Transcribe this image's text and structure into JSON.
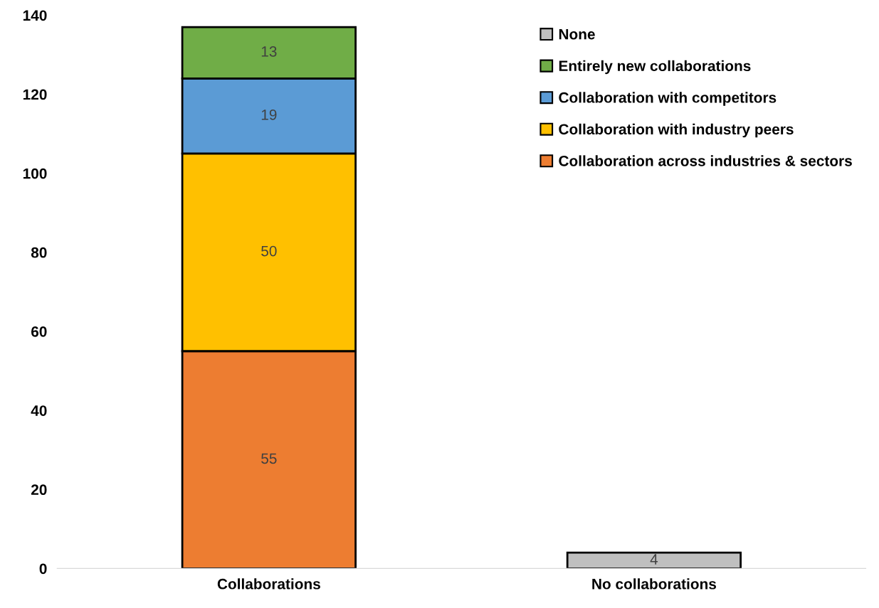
{
  "chart_data": {
    "type": "bar",
    "stacked": true,
    "categories": [
      "Collaborations",
      "No collaborations"
    ],
    "series": [
      {
        "name": "Collaboration across industries & sectors",
        "color": "#ed7d31",
        "values": [
          55,
          null
        ]
      },
      {
        "name": "Collaboration with industry peers",
        "color": "#ffc000",
        "values": [
          50,
          null
        ]
      },
      {
        "name": "Collaboration with competitors",
        "color": "#5b9bd5",
        "values": [
          19,
          null
        ]
      },
      {
        "name": "Entirely new collaborations",
        "color": "#70ad47",
        "values": [
          13,
          null
        ]
      },
      {
        "name": "None",
        "color": "#bfbfbf",
        "values": [
          null,
          4
        ]
      }
    ],
    "ylim": [
      0,
      140
    ],
    "yticks": [
      0,
      20,
      40,
      60,
      80,
      100,
      120,
      140
    ],
    "grid": false,
    "legend": "top right",
    "data_labels": true
  }
}
